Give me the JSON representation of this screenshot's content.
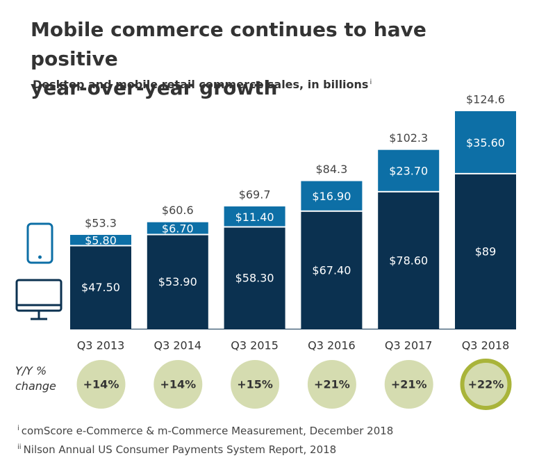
{
  "title_line1": "Mobile commerce continues to have positive",
  "title_line2": "year-over-year growth",
  "subtitle": "Desktop and mobile retail commerce sales, in billions",
  "subtitle_mark": "i",
  "yy_label": "Y/Y %\nchange",
  "colors": {
    "desktop": "#0b3150",
    "mobile": "#0d6fa6",
    "circle": "#d5dcb0",
    "circle_highlight_ring": "#a9b43a",
    "text_dark": "#333333",
    "text_light": "#ffffff"
  },
  "icons": {
    "mobile": "phone-icon",
    "desktop": "monitor-icon"
  },
  "footnotes": [
    {
      "mark": "i",
      "text": "comScore e-Commerce & m-Commerce Measurement, December 2018"
    },
    {
      "mark": "ii",
      "text": "Nilson Annual US Consumer Payments System Report, 2018"
    }
  ],
  "chart_data": {
    "type": "bar",
    "stacked": true,
    "categories": [
      "Q3 2013",
      "Q3 2014",
      "Q3 2015",
      "Q3 2016",
      "Q3 2017",
      "Q3 2018"
    ],
    "series": [
      {
        "values": [
          47.5,
          53.9,
          58.3,
          67.4,
          78.6,
          89
        ],
        "labels": [
          "$47.50",
          "$53.90",
          "$58.30",
          "$67.40",
          "$78.60",
          "$89"
        ]
      },
      {
        "values": [
          5.8,
          6.7,
          11.4,
          16.9,
          23.7,
          35.6
        ],
        "labels": [
          "$5.80",
          "$6.70",
          "$11.40",
          "$16.90",
          "$23.70",
          "$35.60"
        ]
      }
    ],
    "totals": [
      53.3,
      60.6,
      69.7,
      84.3,
      102.3,
      124.6
    ],
    "total_labels": [
      "$53.3",
      "$60.6",
      "$69.7",
      "$84.3",
      "$102.3",
      "$124.6"
    ],
    "yoy_change": [
      "+14%",
      "+14%",
      "+15%",
      "+21%",
      "+21%",
      "+22%"
    ],
    "highlight_index": 5,
    "ylim": [
      0,
      124.6
    ],
    "grid": false,
    "legend": "icons at left"
  }
}
